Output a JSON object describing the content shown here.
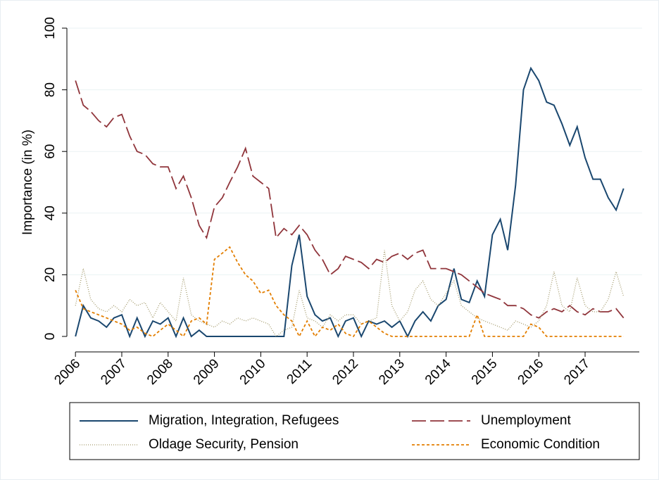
{
  "chart_data": {
    "type": "line",
    "y_label": "Importance (in %)",
    "x": [
      2006,
      2006.17,
      2006.33,
      2006.5,
      2006.67,
      2006.83,
      2007,
      2007.17,
      2007.33,
      2007.5,
      2007.67,
      2007.83,
      2008,
      2008.17,
      2008.33,
      2008.5,
      2008.67,
      2008.83,
      2009,
      2009.17,
      2009.33,
      2009.5,
      2009.67,
      2009.83,
      2010,
      2010.17,
      2010.33,
      2010.5,
      2010.67,
      2010.83,
      2011,
      2011.17,
      2011.33,
      2011.5,
      2011.67,
      2011.83,
      2012,
      2012.17,
      2012.33,
      2012.5,
      2012.67,
      2012.83,
      2013,
      2013.17,
      2013.33,
      2013.5,
      2013.67,
      2013.83,
      2014,
      2014.17,
      2014.33,
      2014.5,
      2014.67,
      2014.83,
      2015,
      2015.17,
      2015.33,
      2015.5,
      2015.67,
      2015.83,
      2016,
      2016.17,
      2016.33,
      2016.5,
      2016.67,
      2016.83,
      2017,
      2017.17,
      2017.33,
      2017.5,
      2017.67,
      2017.83
    ],
    "series": [
      {
        "name": "Migration, Integration, Refugees",
        "color": "#1a476f",
        "style": "solid",
        "values": [
          0,
          10,
          6,
          5,
          3,
          6,
          7,
          0,
          6,
          0,
          5,
          4,
          6,
          0,
          6,
          0,
          2,
          0,
          0,
          0,
          0,
          0,
          0,
          0,
          0,
          0,
          0,
          0,
          23,
          33,
          13,
          7,
          5,
          6,
          0,
          5,
          6,
          0,
          5,
          4,
          5,
          3,
          5,
          0,
          5,
          8,
          5,
          10,
          12,
          22,
          12,
          11,
          18,
          13,
          33,
          38,
          28,
          49,
          80,
          87,
          83,
          76,
          75,
          69,
          62,
          68,
          58,
          51,
          51,
          45,
          41,
          48
        ]
      },
      {
        "name": "Unemployment",
        "color": "#90353b",
        "style": "longdash",
        "values": [
          83,
          75,
          73,
          70,
          68,
          71,
          72,
          65,
          60,
          59,
          56,
          55,
          55,
          48,
          52,
          45,
          36,
          32,
          42,
          45,
          50,
          55,
          61,
          52,
          50,
          48,
          32,
          35,
          33,
          36,
          33,
          28,
          25,
          20,
          22,
          26,
          25,
          24,
          22,
          25,
          24,
          26,
          27,
          25,
          27,
          28,
          22,
          22,
          22,
          21,
          20,
          18,
          16,
          14,
          13,
          12,
          10,
          10,
          9,
          7,
          6,
          8,
          9,
          8,
          10,
          8,
          7,
          9,
          8,
          8,
          9,
          6
        ]
      },
      {
        "name": "Oldage Security, Pension",
        "color": "#a39a6c",
        "style": "dot",
        "values": [
          10,
          22,
          12,
          9,
          8,
          10,
          8,
          12,
          10,
          11,
          6,
          11,
          8,
          5,
          19,
          7,
          5,
          4,
          3,
          5,
          4,
          6,
          5,
          6,
          5,
          4,
          0,
          2,
          3,
          15,
          6,
          5,
          3,
          7,
          5,
          7,
          7,
          4,
          5,
          6,
          28,
          10,
          5,
          8,
          15,
          18,
          12,
          10,
          14,
          18,
          10,
          8,
          6,
          5,
          4,
          3,
          2,
          5,
          4,
          3,
          5,
          10,
          21,
          10,
          8,
          19,
          10,
          8,
          8,
          12,
          21,
          13
        ]
      },
      {
        "name": "Economic Condition",
        "color": "#e37e00",
        "style": "shortdash",
        "values": [
          15,
          9,
          8,
          7,
          6,
          5,
          4,
          2,
          3,
          1,
          0,
          2,
          4,
          2,
          0,
          5,
          6,
          4,
          25,
          27,
          29,
          24,
          20,
          18,
          14,
          15,
          10,
          7,
          5,
          0,
          5,
          0,
          3,
          2,
          4,
          1,
          0,
          4,
          5,
          3,
          1,
          0,
          0,
          0,
          0,
          0,
          0,
          0,
          0,
          0,
          0,
          0,
          7,
          0,
          0,
          0,
          0,
          0,
          0,
          4,
          3,
          0,
          0,
          0,
          0,
          0,
          0,
          0,
          0,
          0,
          0,
          0
        ]
      }
    ],
    "xlim": [
      2005.8,
      2018.2
    ],
    "xticks": [
      2006,
      2007,
      2008,
      2009,
      2010,
      2011,
      2012,
      2013,
      2014,
      2015,
      2016,
      2017
    ],
    "ylim": [
      0,
      100
    ],
    "yticks": [
      0,
      20,
      40,
      60,
      80,
      100
    ],
    "grid": true
  }
}
